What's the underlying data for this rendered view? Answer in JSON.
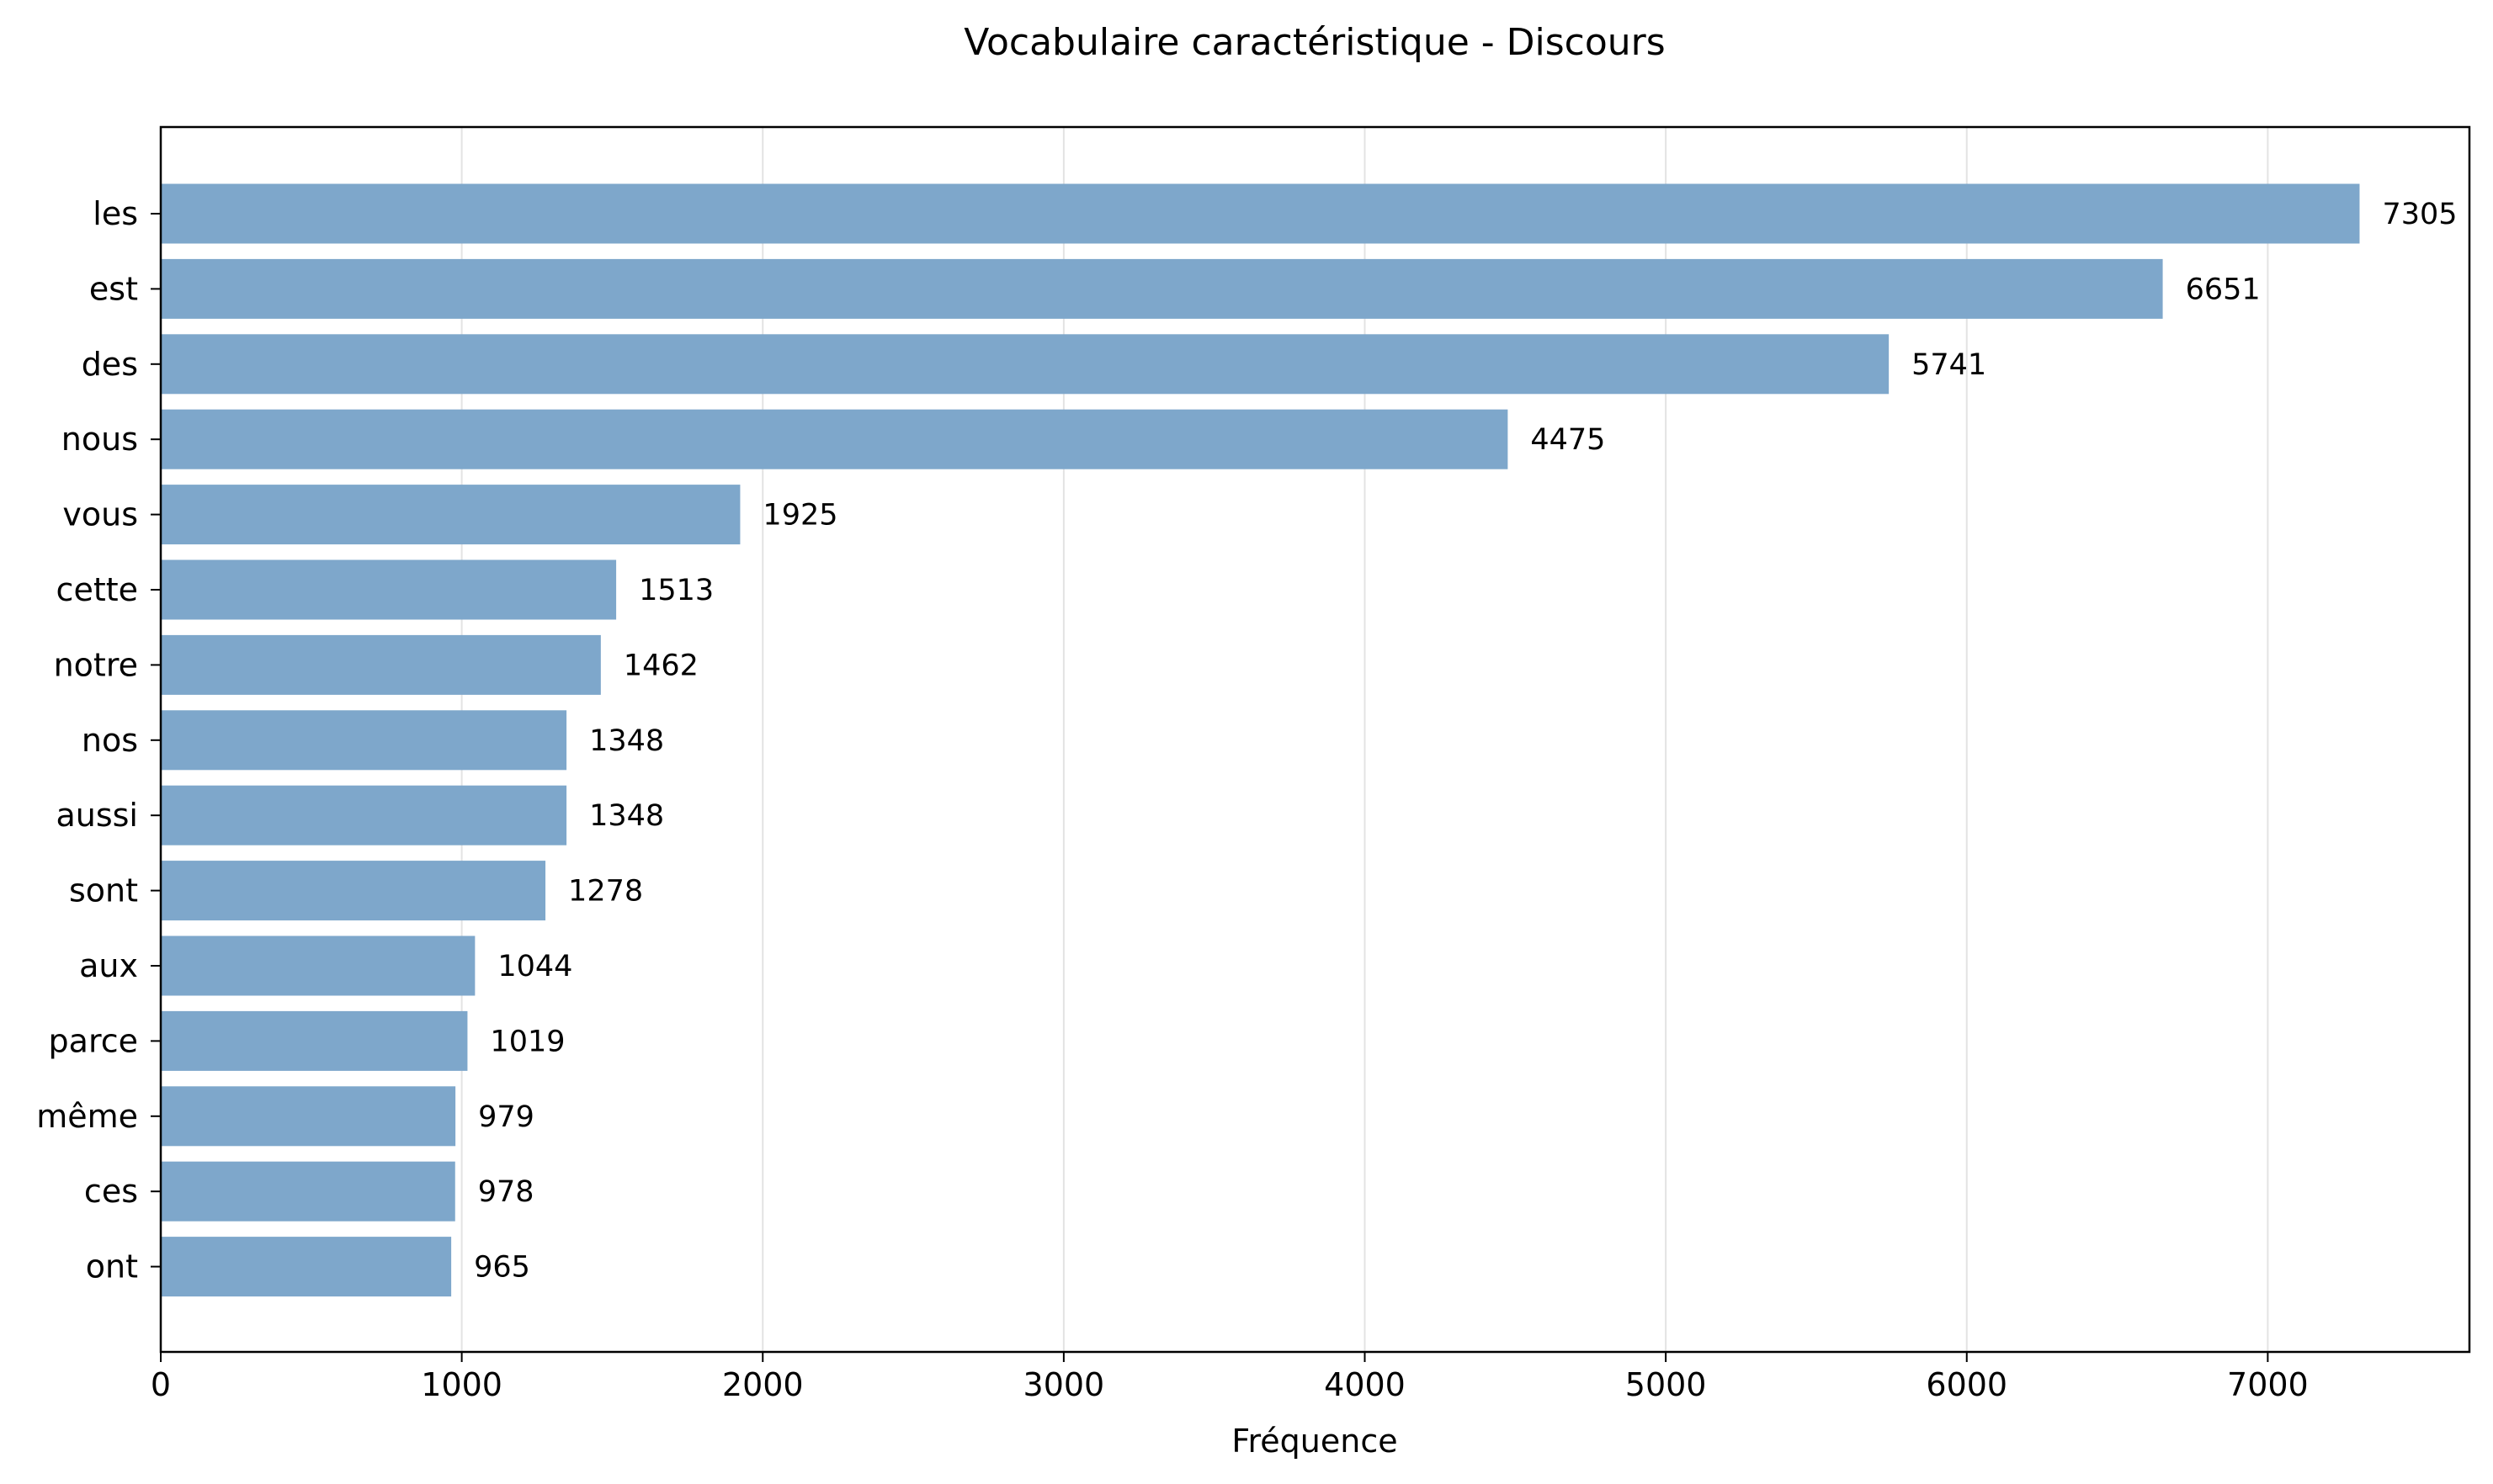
{
  "chart_data": {
    "type": "bar",
    "orientation": "horizontal",
    "title": "Vocabulaire caractéristique - Discours",
    "xlabel": "Fréquence",
    "ylabel": "",
    "categories": [
      "les",
      "est",
      "des",
      "nous",
      "vous",
      "cette",
      "notre",
      "nos",
      "aussi",
      "sont",
      "aux",
      "parce",
      "même",
      "ces",
      "ont"
    ],
    "values": [
      7305,
      6651,
      5741,
      4475,
      1925,
      1513,
      1462,
      1348,
      1348,
      1278,
      1044,
      1019,
      979,
      978,
      965
    ],
    "value_labels": [
      "7305",
      "6651",
      "5741",
      "4475",
      "1925",
      "1513",
      "1462",
      "1348",
      "1348",
      "1278",
      "1044",
      "1019",
      "979",
      "978",
      "965"
    ],
    "xticks": [
      0,
      1000,
      2000,
      3000,
      4000,
      5000,
      6000,
      7000
    ],
    "xtick_labels": [
      "0",
      "1000",
      "2000",
      "3000",
      "4000",
      "5000",
      "6000",
      "7000"
    ],
    "xlim": [
      0,
      7670
    ],
    "grid": "vertical",
    "bar_color": "#7ea7cb",
    "grid_color": "#e3e3e3"
  }
}
